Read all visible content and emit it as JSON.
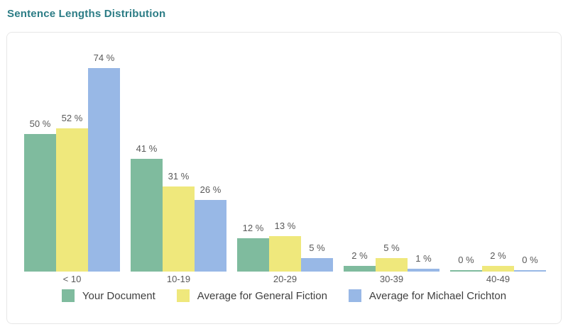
{
  "page": {
    "title": "Sentence Lengths Distribution"
  },
  "chart_data": {
    "type": "bar",
    "title": "Sentence Lengths Distribution",
    "categories": [
      "< 10",
      "10-19",
      "20-29",
      "30-39",
      "40-49"
    ],
    "series": [
      {
        "name": "Your Document",
        "color": "#7fbb9e",
        "values": [
          50,
          41,
          12,
          2,
          0
        ]
      },
      {
        "name": "Average for General Fiction",
        "color": "#efe87c",
        "values": [
          52,
          31,
          13,
          5,
          2
        ]
      },
      {
        "name": "Average for Michael Crichton",
        "color": "#98b8e6",
        "values": [
          74,
          26,
          5,
          1,
          0
        ]
      }
    ],
    "value_label_format": "{v} %",
    "xlabel": "",
    "ylabel": "",
    "ylim": [
      0,
      80
    ],
    "grid": false,
    "legend_position": "bottom",
    "value_labels_shown": true
  },
  "colors": {
    "title": "#2b7c85",
    "card_border": "#e7e7e7",
    "value_label": "#595959",
    "axis_label": "#595959",
    "legend_label": "#3f3f3f"
  }
}
